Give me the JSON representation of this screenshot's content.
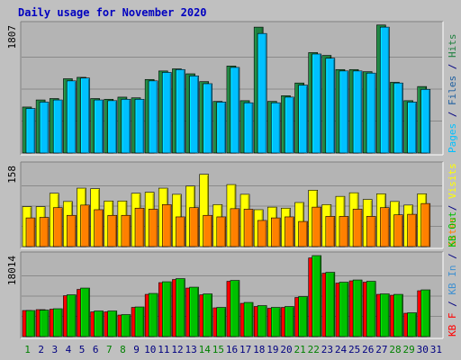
{
  "colors": {
    "background": "#c0c0c0",
    "plot": "#b4b4b4",
    "grid": "#8a8a8a",
    "title": "#0000c0",
    "pages": "#00c0ff",
    "files": "#2060a0",
    "hits": "#208040",
    "visits": "#ffff00",
    "sites": "#ff8000",
    "kb_f": "#ff0000",
    "kb_in": "#4090d0",
    "kb_out": "#00c000",
    "weekday_label": "#000080",
    "weekend_label": "#008000"
  },
  "chart_data": {
    "type": "bar",
    "title": "Daily usage for November 2020",
    "categories": [
      "1",
      "2",
      "3",
      "4",
      "5",
      "6",
      "7",
      "8",
      "9",
      "10",
      "11",
      "12",
      "13",
      "14",
      "15",
      "16",
      "17",
      "18",
      "19",
      "20",
      "21",
      "22",
      "23",
      "24",
      "25",
      "26",
      "27",
      "28",
      "29",
      "30",
      "31"
    ],
    "weekend_days": [
      "1",
      "7",
      "8",
      "14",
      "15",
      "21",
      "22",
      "28",
      "29"
    ],
    "panels": [
      {
        "name": "hits_files_pages",
        "ymax_label": "1807",
        "ymax": 1807,
        "side_labels": [
          {
            "text": "Pages",
            "color_key": "pages"
          },
          {
            "text": " / ",
            "color_key": "weekday_label"
          },
          {
            "text": "Files",
            "color_key": "files"
          },
          {
            "text": " / ",
            "color_key": "weekday_label"
          },
          {
            "text": "Hits",
            "color_key": "hits"
          }
        ],
        "series": [
          {
            "name": "Hits",
            "color_key": "hits",
            "values": [
              650,
              750,
              770,
              1050,
              1070,
              770,
              760,
              790,
              780,
              1040,
              1160,
              1190,
              1120,
              1010,
              730,
              1230,
              740,
              1780,
              730,
              810,
              990,
              1420,
              1380,
              1180,
              1180,
              1150,
              1810,
              1000,
              740,
              940,
              0
            ]
          },
          {
            "name": "Pages",
            "color_key": "pages",
            "values": [
              630,
              720,
              750,
              1020,
              1060,
              750,
              740,
              760,
              760,
              1020,
              1140,
              1180,
              1090,
              980,
              720,
              1210,
              710,
              1690,
              710,
              790,
              960,
              1400,
              1340,
              1160,
              1160,
              1130,
              1780,
              990,
              720,
              900,
              0
            ]
          }
        ]
      },
      {
        "name": "visits_sites",
        "ymax_label": "158",
        "ymax": 158,
        "side_labels": [
          {
            "text": "Sites",
            "color_key": "sites"
          },
          {
            "text": " / ",
            "color_key": "weekday_label"
          },
          {
            "text": "Visits",
            "color_key": "visits"
          }
        ],
        "series": [
          {
            "name": "Visits",
            "color_key": "visits",
            "values": [
              78,
              78,
              104,
              88,
              114,
              113,
              89,
              89,
              104,
              106,
              114,
              102,
              118,
              141,
              82,
              121,
              102,
              72,
              77,
              75,
              86,
              110,
              82,
              98,
              105,
              92,
              103,
              88,
              81,
              103,
              0
            ]
          },
          {
            "name": "Sites",
            "color_key": "sites",
            "values": [
              56,
              57,
              76,
              61,
              81,
              72,
              61,
              61,
              75,
              73,
              82,
              58,
              76,
              61,
              58,
              74,
              73,
              51,
              56,
              58,
              49,
              77,
              59,
              59,
              73,
              59,
              76,
              62,
              63,
              84,
              0
            ]
          }
        ]
      },
      {
        "name": "kbytes",
        "ymax_label": "18014",
        "ymax": 18014,
        "side_labels": [
          {
            "text": "KB F",
            "color_key": "kb_f"
          },
          {
            "text": " / ",
            "color_key": "weekday_label"
          },
          {
            "text": "KB In",
            "color_key": "kb_in"
          },
          {
            "text": " / ",
            "color_key": "weekday_label"
          },
          {
            "text": "KB Out",
            "color_key": "kb_out"
          }
        ],
        "series": [
          {
            "name": "KB F",
            "color_key": "kb_f",
            "values": [
              5800,
              6000,
              6100,
              9100,
              10500,
              5500,
              5500,
              4800,
              6500,
              9400,
              12000,
              12700,
              10800,
              9300,
              6400,
              12300,
              7400,
              6700,
              6300,
              6500,
              8700,
              17500,
              14100,
              11900,
              12400,
              12100,
              9400,
              9200,
              5200,
              10200,
              0
            ]
          },
          {
            "name": "KB Out",
            "color_key": "kb_out",
            "values": [
              5800,
              5900,
              6200,
              9300,
              10800,
              5700,
              5700,
              4900,
              6600,
              9600,
              12200,
              12900,
              11000,
              9500,
              6500,
              12500,
              7600,
              6900,
              6500,
              6700,
              8900,
              18014,
              14300,
              12100,
              12600,
              12300,
              9500,
              9400,
              5300,
              10400,
              0
            ]
          }
        ]
      }
    ]
  }
}
